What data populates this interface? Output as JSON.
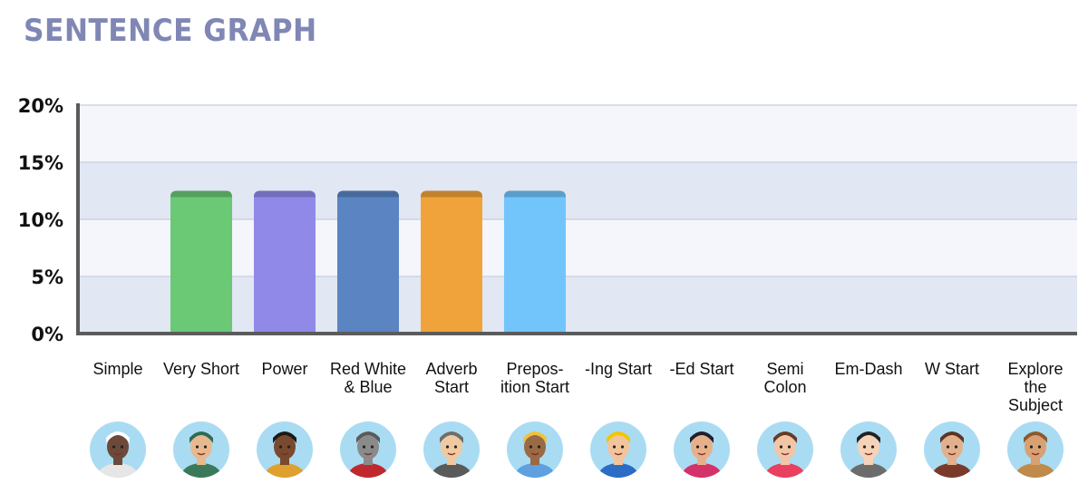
{
  "header": {
    "title": "SENTENCE GRAPH"
  },
  "chart_data": {
    "type": "bar",
    "title": "SENTENCE GRAPH",
    "xlabel": "",
    "ylabel": "",
    "ylim": [
      0,
      20
    ],
    "yticks": [
      0,
      5,
      10,
      15,
      20
    ],
    "ytick_labels": [
      "0%",
      "5%",
      "10%",
      "15%",
      "20%"
    ],
    "grid": true,
    "categories": [
      {
        "label": "Simple",
        "value": 0,
        "color": null,
        "avatar": "astronaut-avatar-icon"
      },
      {
        "label": "Very Short",
        "value": 12.5,
        "color": "#6bc875",
        "avatar": "pirate-avatar-icon"
      },
      {
        "label": "Power",
        "value": 12.5,
        "color": "#9189e8",
        "avatar": "woman-avatar-icon"
      },
      {
        "label": "Red White & Blue",
        "value": 12.5,
        "color": "#5a84c2",
        "avatar": "knight-avatar-icon"
      },
      {
        "label": "Adverb Start",
        "value": 12.5,
        "color": "#f0a33a",
        "avatar": "detective-avatar-icon"
      },
      {
        "label": "Prepos-ition Start",
        "value": 12.5,
        "color": "#72c5fb",
        "avatar": "boy-avatar-icon"
      },
      {
        "label": "-Ing Start",
        "value": 0,
        "color": null,
        "avatar": "cyclist-avatar-icon"
      },
      {
        "label": "-Ed Start",
        "value": 0,
        "color": null,
        "avatar": "ninja-avatar-icon"
      },
      {
        "label": "Semi Colon",
        "value": 0,
        "color": null,
        "avatar": "girl-avatar-icon"
      },
      {
        "label": "Em-Dash",
        "value": 0,
        "color": null,
        "avatar": "top-hat-avatar-icon"
      },
      {
        "label": "W Start",
        "value": 0,
        "color": null,
        "avatar": "bearded-man-avatar-icon"
      },
      {
        "label": "Explore the Subject",
        "value": 0,
        "color": null,
        "avatar": "explorer-avatar-icon"
      }
    ]
  }
}
